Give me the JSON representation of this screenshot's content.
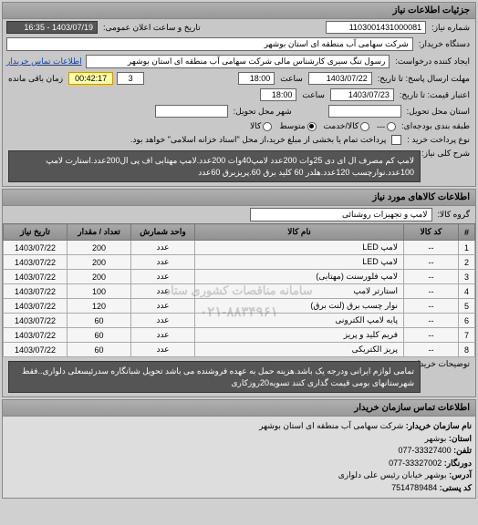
{
  "header": {
    "title": "جزئیات اطلاعات نیاز"
  },
  "top": {
    "reqNoLabel": "شماره نیاز:",
    "reqNo": "1103001431000081",
    "pubDateLabel": "تاریخ و ساعت اعلان عمومی:",
    "pubDate": "1403/07/19 - 16:35",
    "buyerLabel": "دستگاه خریدار:",
    "buyer": "شرکت سهامی آب منطقه ای استان بوشهر",
    "requesterLabel": "ایجاد کننده درخواست:",
    "requester": "رسول تنگ سیری کارشناس مالی شرکت سهامی آب منطقه ای استان بوشهر",
    "contactLink": "اطلاعات تماس خریدار",
    "deadlineSendLabel": "مهلت ارسال پاسخ: تا تاریخ:",
    "deadlineSendDate": "1403/07/22",
    "timeLabel": "ساعت",
    "deadlineSendTime": "18:00",
    "remainLabel": "زمان باقی مانده",
    "daysVal": "3",
    "timerVal": "00:42:17",
    "validityLabel": "اعتبار قیمت: تا تاریخ:",
    "validityDate": "1403/07/23",
    "validityTime": "18:00",
    "deliveryProvinceLabel": "استان محل تحویل:",
    "deliveryCityLabel": "شهر محل تحویل:",
    "budgetRowLabel": "طبقه بندی بودجه‌ای:",
    "budgetOptions": {
      "o1": "کالا",
      "o2": "متوسط",
      "o3": "کالا/خدمت",
      "o4": "---"
    },
    "paymentTypeLabel": "نوع پرداخت خرید :",
    "paymentNote": "پرداخت تمام یا بخشی از مبلغ خرید،از محل \"اسناد خزانه اسلامی\" خواهد بود.",
    "nocheck": " "
  },
  "desc": {
    "label": "شرح کلی نیاز:",
    "text": "لامپ کم مصرف ال ای دی 25وات 200عدد لامپ40وات 200عدد.لامپ مهتابی اف پی ال200عدد.استارت لامپ 100عدد.نوارچسب 120عدد.هلدر 60 کلید برق 60.پریزبرق 60عدد"
  },
  "goods": {
    "panelTitle": "اطلاعات کالاهای مورد نیاز",
    "groupLabel": "گروه کالا:",
    "groupValue": "لامپ و تجهیزات روشنائی"
  },
  "table": {
    "cols": {
      "idx": "#",
      "code": "کد کالا",
      "name": "نام کالا",
      "unit": "واحد شمارش",
      "qty": "تعداد / مقدار",
      "date": "تاریخ نیاز"
    },
    "rows": [
      {
        "idx": "1",
        "code": "--",
        "name": "لامپ LED",
        "unit": "عدد",
        "qty": "200",
        "date": "1403/07/22"
      },
      {
        "idx": "2",
        "code": "--",
        "name": "لامپ LED",
        "unit": "عدد",
        "qty": "200",
        "date": "1403/07/22"
      },
      {
        "idx": "3",
        "code": "--",
        "name": "لامپ فلورسنت (مهتابی)",
        "unit": "عدد",
        "qty": "200",
        "date": "1403/07/22"
      },
      {
        "idx": "4",
        "code": "--",
        "name": "استارتر لامپ",
        "unit": "عدد",
        "qty": "100",
        "date": "1403/07/22"
      },
      {
        "idx": "5",
        "code": "--",
        "name": "نوار چسب برق (لنت برق)",
        "unit": "عدد",
        "qty": "120",
        "date": "1403/07/22"
      },
      {
        "idx": "6",
        "code": "--",
        "name": "پایه لامپ الکترونی",
        "unit": "عدد",
        "qty": "60",
        "date": "1403/07/22"
      },
      {
        "idx": "7",
        "code": "--",
        "name": "فریم کلید و پریز",
        "unit": "عدد",
        "qty": "60",
        "date": "1403/07/22"
      },
      {
        "idx": "8",
        "code": "--",
        "name": "پریز الکتریکی",
        "unit": "عدد",
        "qty": "60",
        "date": "1403/07/22"
      }
    ]
  },
  "buyerNote": {
    "label": "توضیحات خریدار:",
    "text": "تمامی لوازم ایرانی ودرجه یک باشد.هزینه حمل به عهده فروشنده می باشد تحویل شبانگاره سدرئیسعلی دلواری..فقط شهرستانهای بومی قیمت گذاری کنند تسویه20روزکاری"
  },
  "contact": {
    "panelTitle": "اطلاعات تماس سازمان خریدار",
    "orgLabel": "نام سازمان خریدار:",
    "orgValue": "شرکت سهامی آب منطقه ای استان بوشهر",
    "provLabel": "استان:",
    "provValue": "بوشهر",
    "telLabel": "تلفن:",
    "telValue": "33327400-077",
    "faxLabel": "دورنگار:",
    "faxValue": "33327002-077",
    "addrLabel": "آدرس:",
    "addrValue": "بوشهر خیابان رئیس علی دلواری",
    "postLabel": "کد پستی:",
    "postValue": "7514789484"
  },
  "wm": {
    "text1": "سامانه مناقصات کشوری ستاد",
    "text2": "۰۲۱-۸۸۳۴۹۶۱"
  }
}
